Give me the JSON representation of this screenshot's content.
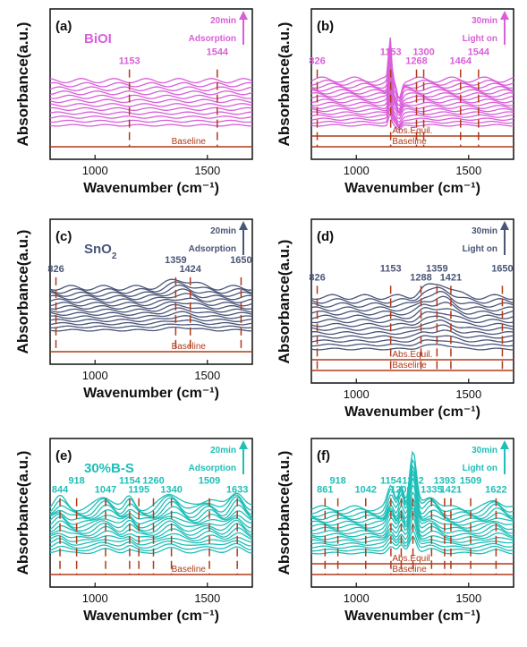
{
  "figure": {
    "ylabel": "Absorbance(a.u.)",
    "xlabel": "Wavenumber (cm⁻¹)"
  },
  "chart_data": [
    {
      "id": "a",
      "type": "line",
      "panel_label": "(a)",
      "sample": "BiOI",
      "time": "20min",
      "mode": "Adsorption",
      "color": "#d95fd9",
      "marker_color": "#b03a1a",
      "xlim": [
        800,
        1700
      ],
      "xticks": [
        "1000",
        "1500"
      ],
      "peaks": [
        {
          "x": 1153,
          "label": "1153"
        },
        {
          "x": 1544,
          "label": "1544"
        }
      ],
      "n_curves": 12,
      "features": [],
      "baseline_labels": [
        "Baseline"
      ]
    },
    {
      "id": "b",
      "type": "line",
      "panel_label": "(b)",
      "sample": "",
      "time": "30min",
      "mode": "Light on",
      "color": "#d95fd9",
      "marker_color": "#b03a1a",
      "xlim": [
        800,
        1700
      ],
      "xticks": [
        "1000",
        "1500"
      ],
      "peaks": [
        {
          "x": 826,
          "label": "826"
        },
        {
          "x": 1153,
          "label": "1153"
        },
        {
          "x": 1268,
          "label": "1268"
        },
        {
          "x": 1300,
          "label": "1300"
        },
        {
          "x": 1464,
          "label": "1464"
        },
        {
          "x": 1544,
          "label": "1544"
        }
      ],
      "n_curves": 16,
      "features": [
        {
          "x": 1150,
          "w": 6,
          "a": 2.4
        },
        {
          "x": 1190,
          "w": 10,
          "a": -1.0
        }
      ],
      "baseline_labels": [
        "Abs.Equil.",
        "Baseline"
      ]
    },
    {
      "id": "c",
      "type": "line",
      "panel_label": "(c)",
      "sample": "SnO",
      "sample_sub": "2",
      "time": "20min",
      "mode": "Adsorption",
      "color": "#4a5578",
      "marker_color": "#b03a1a",
      "xlim": [
        800,
        1700
      ],
      "xticks": [
        "1000",
        "1500"
      ],
      "peaks": [
        {
          "x": 826,
          "label": "826"
        },
        {
          "x": 1359,
          "label": "1359"
        },
        {
          "x": 1424,
          "label": "1424"
        },
        {
          "x": 1650,
          "label": "1650"
        }
      ],
      "n_curves": 14,
      "features": [
        {
          "x": 1380,
          "w": 60,
          "a": 0.5
        }
      ],
      "baseline_labels": [
        "Baseline"
      ]
    },
    {
      "id": "d",
      "type": "line",
      "panel_label": "(d)",
      "sample": "",
      "time": "30min",
      "mode": "Light on",
      "color": "#4a5578",
      "marker_color": "#b03a1a",
      "xlim": [
        800,
        1700
      ],
      "xticks": [
        "1000",
        "1500"
      ],
      "peaks": [
        {
          "x": 826,
          "label": "826"
        },
        {
          "x": 1153,
          "label": "1153"
        },
        {
          "x": 1288,
          "label": "1288"
        },
        {
          "x": 1359,
          "label": "1359"
        },
        {
          "x": 1421,
          "label": "1421"
        },
        {
          "x": 1650,
          "label": "1650"
        }
      ],
      "n_curves": 14,
      "features": [
        {
          "x": 1300,
          "w": 25,
          "a": 0.4
        },
        {
          "x": 1380,
          "w": 50,
          "a": 0.8
        }
      ],
      "baseline_labels": [
        "Abs.Equil.",
        "Baseline"
      ]
    },
    {
      "id": "e",
      "type": "line",
      "panel_label": "(e)",
      "sample": "30%B-S",
      "time": "20min",
      "mode": "Adsorption",
      "color": "#1fbfb8",
      "marker_color": "#b03a1a",
      "xlim": [
        800,
        1700
      ],
      "xticks": [
        "1000",
        "1500"
      ],
      "peaks": [
        {
          "x": 844,
          "label": "844"
        },
        {
          "x": 918,
          "label": "918"
        },
        {
          "x": 1047,
          "label": "1047"
        },
        {
          "x": 1154,
          "label": "1154"
        },
        {
          "x": 1195,
          "label": "1195"
        },
        {
          "x": 1260,
          "label": "1260"
        },
        {
          "x": 1340,
          "label": "1340"
        },
        {
          "x": 1509,
          "label": "1509"
        },
        {
          "x": 1633,
          "label": "1633"
        }
      ],
      "n_curves": 16,
      "features": [
        {
          "x": 844,
          "w": 25,
          "a": 0.6
        },
        {
          "x": 1047,
          "w": 35,
          "a": 0.7
        },
        {
          "x": 1154,
          "w": 20,
          "a": 0.6
        },
        {
          "x": 1340,
          "w": 40,
          "a": 0.9
        },
        {
          "x": 1509,
          "w": 35,
          "a": 0.6
        },
        {
          "x": 1633,
          "w": 30,
          "a": 1.0
        }
      ],
      "baseline_labels": [
        "Baseline"
      ]
    },
    {
      "id": "f",
      "type": "line",
      "panel_label": "(f)",
      "sample": "",
      "time": "30min",
      "mode": "Light on",
      "color": "#1fbfb8",
      "marker_color": "#b03a1a",
      "xlim": [
        800,
        1700
      ],
      "xticks": [
        "1000",
        "1500"
      ],
      "peaks": [
        {
          "x": 861,
          "label": "861"
        },
        {
          "x": 918,
          "label": "918"
        },
        {
          "x": 1042,
          "label": "1042"
        },
        {
          "x": 1154,
          "label": "1154"
        },
        {
          "x": 1200,
          "label": "1200"
        },
        {
          "x": 1252,
          "label": "1252"
        },
        {
          "x": 1335,
          "label": "1335"
        },
        {
          "x": 1393,
          "label": "1393"
        },
        {
          "x": 1421,
          "label": "1421"
        },
        {
          "x": 1509,
          "label": "1509"
        },
        {
          "x": 1622,
          "label": "1622"
        }
      ],
      "n_curves": 16,
      "features": [
        {
          "x": 1154,
          "w": 15,
          "a": 1.2
        },
        {
          "x": 1200,
          "w": 12,
          "a": 1.4
        },
        {
          "x": 1252,
          "w": 15,
          "a": 3.2
        },
        {
          "x": 1335,
          "w": 30,
          "a": 0.7
        },
        {
          "x": 1622,
          "w": 30,
          "a": 0.5
        }
      ],
      "baseline_labels": [
        "Abs.Equil.",
        "Baseline"
      ]
    }
  ]
}
